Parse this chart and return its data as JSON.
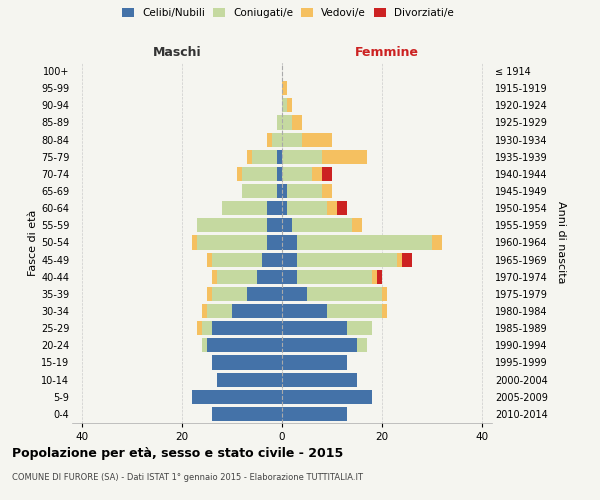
{
  "age_groups": [
    "0-4",
    "5-9",
    "10-14",
    "15-19",
    "20-24",
    "25-29",
    "30-34",
    "35-39",
    "40-44",
    "45-49",
    "50-54",
    "55-59",
    "60-64",
    "65-69",
    "70-74",
    "75-79",
    "80-84",
    "85-89",
    "90-94",
    "95-99",
    "100+"
  ],
  "birth_years": [
    "2010-2014",
    "2005-2009",
    "2000-2004",
    "1995-1999",
    "1990-1994",
    "1985-1989",
    "1980-1984",
    "1975-1979",
    "1970-1974",
    "1965-1969",
    "1960-1964",
    "1955-1959",
    "1950-1954",
    "1945-1949",
    "1940-1944",
    "1935-1939",
    "1930-1934",
    "1925-1929",
    "1920-1924",
    "1915-1919",
    "≤ 1914"
  ],
  "colors": {
    "celibi": "#4472a8",
    "coniugati": "#c5d9a0",
    "vedovi": "#f5c060",
    "divorziati": "#cc2222"
  },
  "males": {
    "celibi": [
      14,
      18,
      13,
      14,
      15,
      14,
      10,
      7,
      5,
      4,
      3,
      3,
      3,
      1,
      1,
      1,
      0,
      0,
      0,
      0,
      0
    ],
    "coniugati": [
      0,
      0,
      0,
      0,
      1,
      2,
      5,
      7,
      8,
      10,
      14,
      14,
      9,
      7,
      7,
      5,
      2,
      1,
      0,
      0,
      0
    ],
    "vedovi": [
      0,
      0,
      0,
      0,
      0,
      1,
      1,
      1,
      1,
      1,
      1,
      0,
      0,
      0,
      1,
      1,
      1,
      0,
      0,
      0,
      0
    ],
    "divorziati": [
      0,
      0,
      0,
      0,
      0,
      0,
      0,
      0,
      0,
      0,
      0,
      0,
      0,
      0,
      0,
      0,
      0,
      0,
      0,
      0,
      0
    ]
  },
  "females": {
    "nubili": [
      13,
      18,
      15,
      13,
      15,
      13,
      9,
      5,
      3,
      3,
      3,
      2,
      1,
      1,
      0,
      0,
      0,
      0,
      0,
      0,
      0
    ],
    "coniugate": [
      0,
      0,
      0,
      0,
      2,
      5,
      11,
      15,
      15,
      20,
      27,
      12,
      8,
      7,
      6,
      8,
      4,
      2,
      1,
      0,
      0
    ],
    "vedove": [
      0,
      0,
      0,
      0,
      0,
      0,
      1,
      1,
      1,
      1,
      2,
      2,
      2,
      2,
      2,
      9,
      6,
      2,
      1,
      1,
      0
    ],
    "divorziate": [
      0,
      0,
      0,
      0,
      0,
      0,
      0,
      0,
      1,
      2,
      0,
      0,
      2,
      0,
      2,
      0,
      0,
      0,
      0,
      0,
      0
    ]
  },
  "title": "Popolazione per età, sesso e stato civile - 2015",
  "subtitle": "COMUNE DI FURORE (SA) - Dati ISTAT 1° gennaio 2015 - Elaborazione TUTTITALIA.IT",
  "xlabel_left": "Maschi",
  "xlabel_right": "Femmine",
  "ylabel_left": "Fasce di età",
  "ylabel_right": "Anni di nascita",
  "xlim": 42,
  "background_color": "#f5f5f0",
  "plot_bg": "#f5f5f0",
  "grid_color": "#cccccc"
}
